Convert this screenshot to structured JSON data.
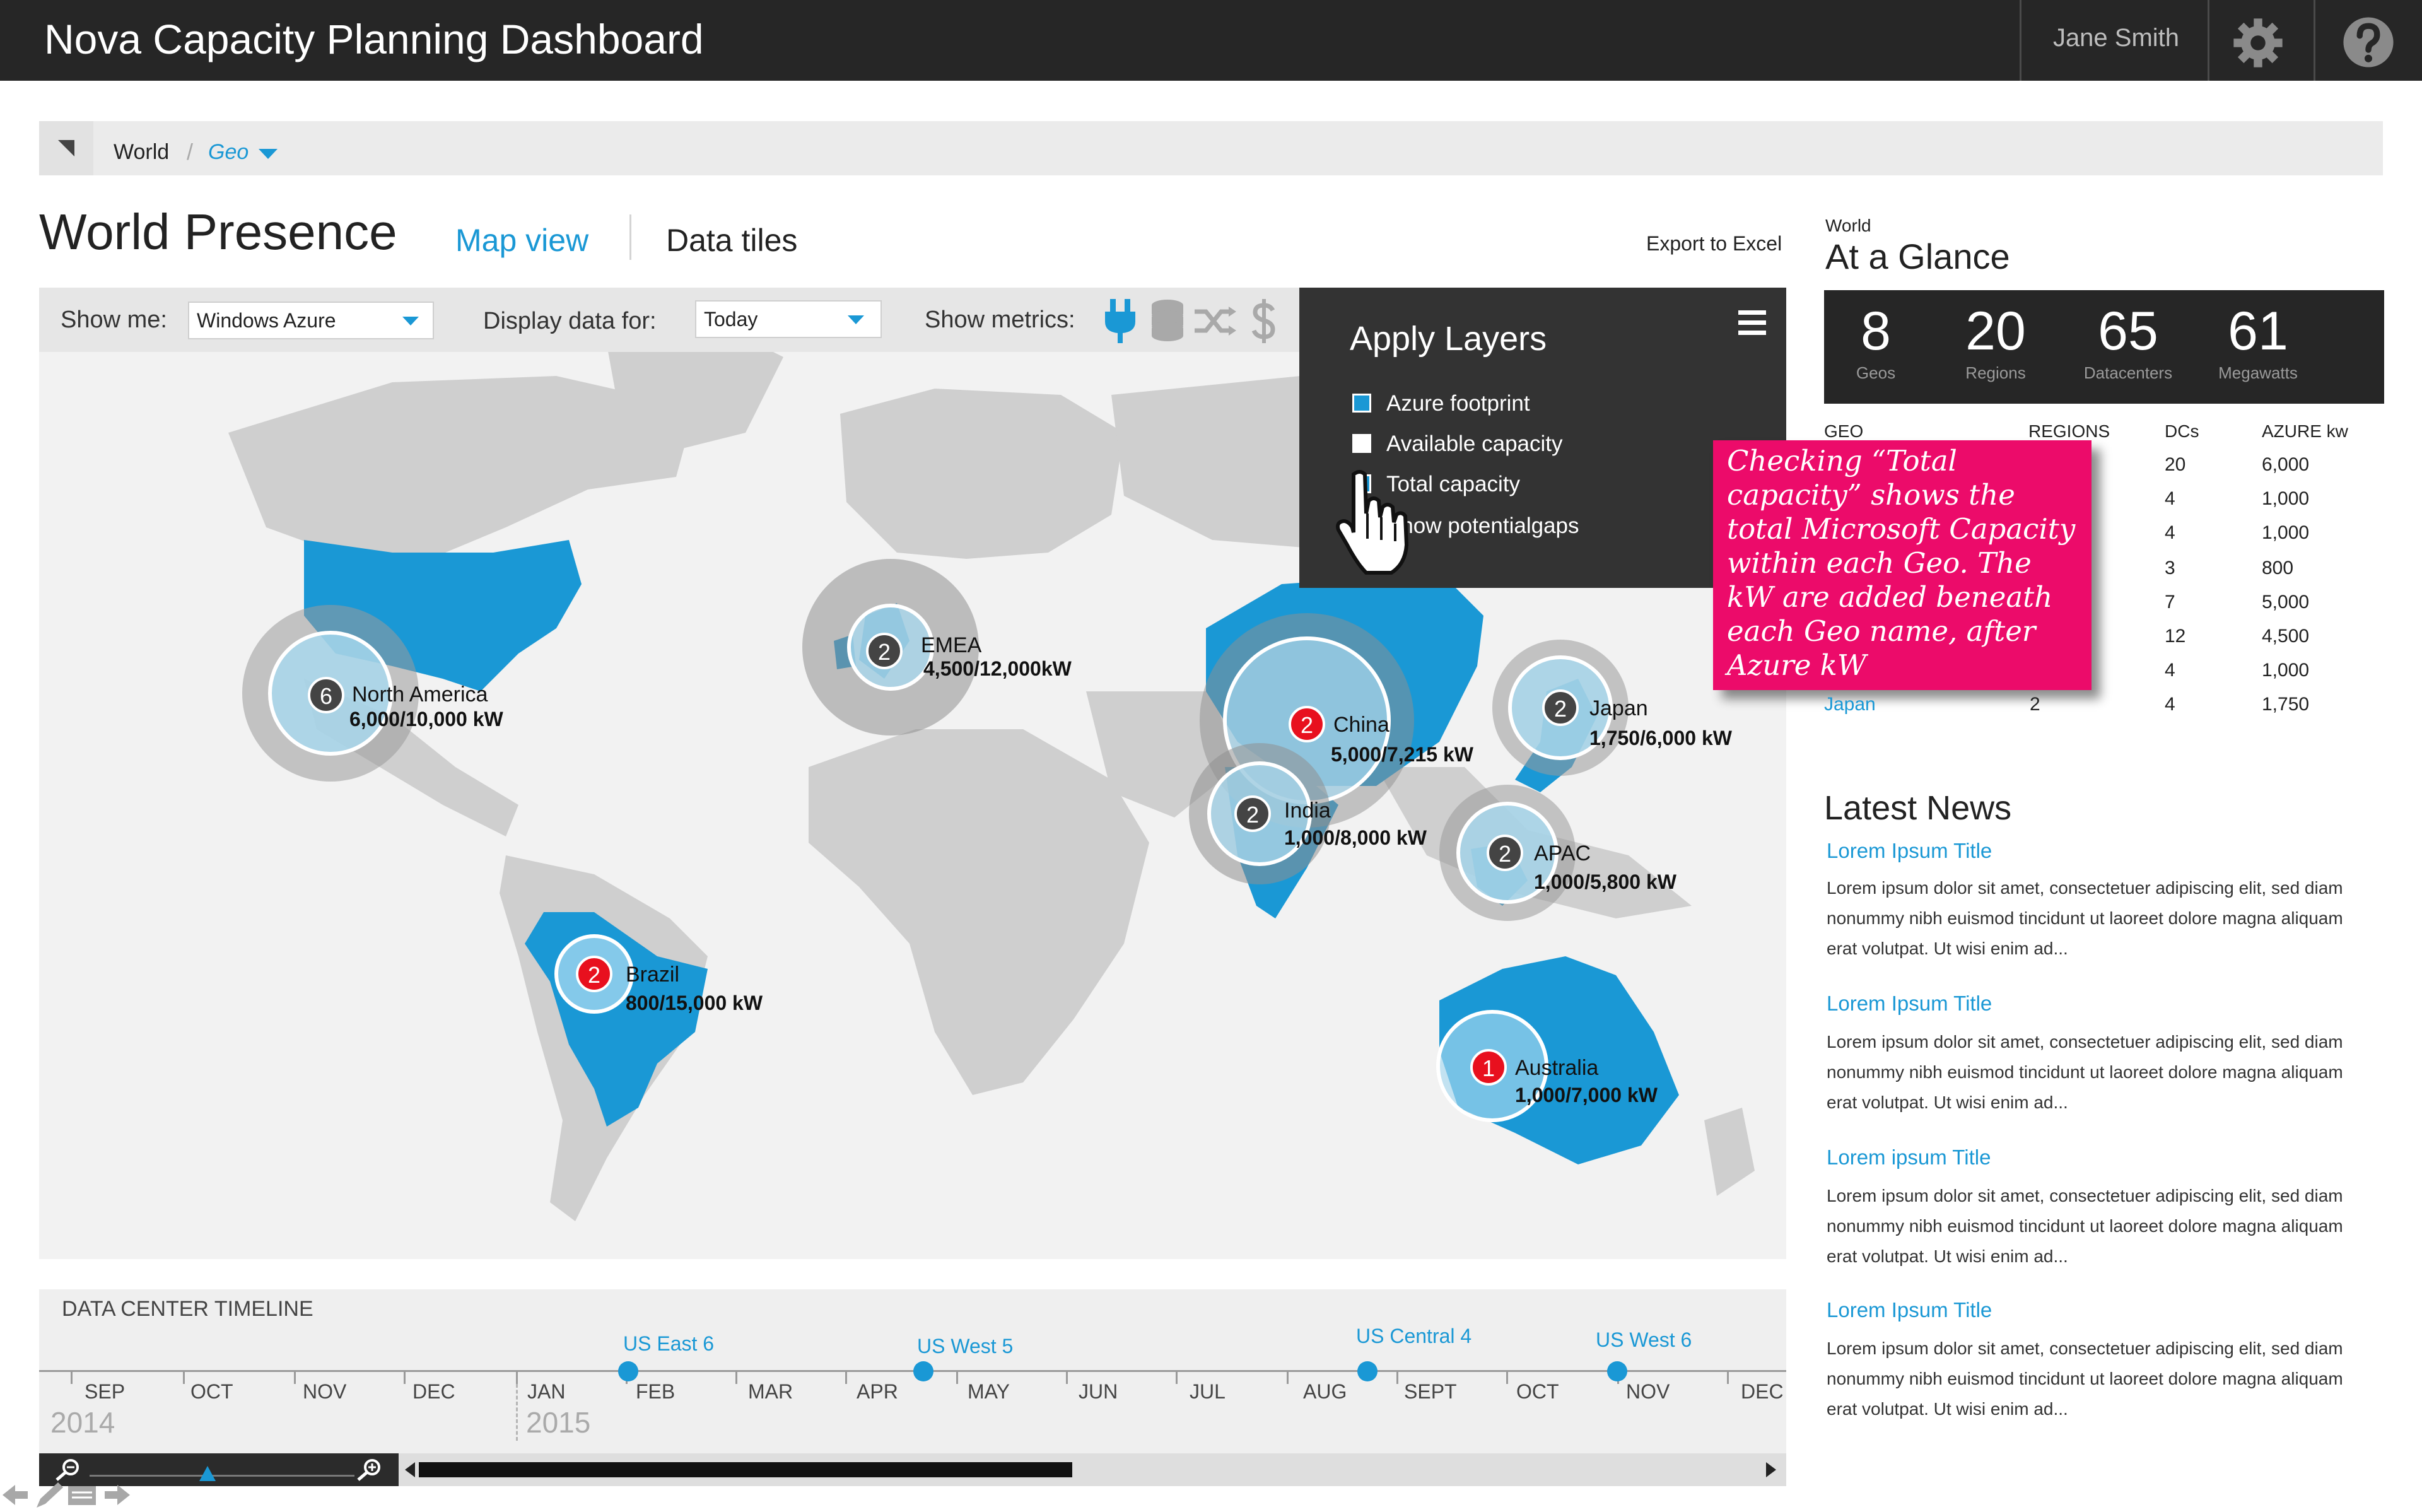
{
  "app": {
    "title": "Nova Capacity Planning Dashboard",
    "user": "Jane Smith"
  },
  "header_icons": [
    "gear-icon",
    "help-icon"
  ],
  "breadcrumb": {
    "items": [
      "World",
      "Geo"
    ],
    "separator": "/"
  },
  "page": {
    "title": "World Presence",
    "tabs": [
      {
        "label": "Map view",
        "active": true
      },
      {
        "label": "Data tiles",
        "active": false
      }
    ],
    "export_label": "Export to Excel"
  },
  "filters": {
    "show_me_label": "Show me:",
    "show_me_value": "Windows Azure",
    "display_label": "Display data for:",
    "display_value": "Today",
    "metrics_label": "Show metrics:",
    "metric_icons": [
      "plug-icon",
      "database-icon",
      "shuffle-icon",
      "dollar-icon"
    ]
  },
  "layers": {
    "title": "Apply Layers",
    "items": [
      {
        "label": "Azure footprint",
        "checked": true
      },
      {
        "label": "Available capacity",
        "checked": false
      },
      {
        "label": "Total capacity",
        "checked": true
      },
      {
        "label": "Show potentialgaps",
        "checked": false
      }
    ]
  },
  "note": {
    "text": "Checking “Total capacity” shows the total Microsoft Capacity within each Geo. The kW are added beneath each Geo name, after Azure kW"
  },
  "map": {
    "geos": [
      {
        "name": "North America",
        "count": "6",
        "capacity": "6,000/10,000 kW",
        "alert": false
      },
      {
        "name": "EMEA",
        "count": "2",
        "capacity": "4,500/12,000kW",
        "alert": false
      },
      {
        "name": "China",
        "count": "2",
        "capacity": "5,000/7,215 kW",
        "alert": true
      },
      {
        "name": "Japan",
        "count": "2",
        "capacity": "1,750/6,000 kW",
        "alert": false
      },
      {
        "name": "India",
        "count": "2",
        "capacity": "1,000/8,000 kW",
        "alert": false
      },
      {
        "name": "APAC",
        "count": "2",
        "capacity": "1,000/5,800 kW",
        "alert": false
      },
      {
        "name": "Brazil",
        "count": "2",
        "capacity": "800/15,000 kW",
        "alert": true
      },
      {
        "name": "Australia",
        "count": "1",
        "capacity": "1,000/7,000 kW",
        "alert": true
      }
    ]
  },
  "glance": {
    "subtitle": "World",
    "title": "At a Glance",
    "stats": [
      {
        "value": "8",
        "label": "Geos"
      },
      {
        "value": "20",
        "label": "Regions"
      },
      {
        "value": "65",
        "label": "Datacenters"
      },
      {
        "value": "61",
        "label": "Megawatts"
      }
    ],
    "table": {
      "headers": [
        "GEO",
        "REGIONS",
        "DCs",
        "AZURE kw"
      ],
      "rows": [
        {
          "dcs": "20",
          "kw": "6,000"
        },
        {
          "dcs": "4",
          "kw": "1,000"
        },
        {
          "dcs": "4",
          "kw": "1,000"
        },
        {
          "dcs": "3",
          "kw": "800"
        },
        {
          "dcs": "7",
          "kw": "5,000"
        },
        {
          "dcs": "12",
          "kw": "4,500"
        },
        {
          "dcs": "4",
          "kw": "1,000"
        },
        {
          "geo": "Japan",
          "regions": "2",
          "dcs": "4",
          "kw": "1,750"
        }
      ]
    }
  },
  "news": {
    "title": "Latest News",
    "items": [
      {
        "title": "Lorem Ipsum Title",
        "body": "Lorem ipsum dolor sit amet, consectetuer adipiscing elit, sed diam nonummy nibh euismod tincidunt ut laoreet dolore magna aliquam erat volutpat. Ut wisi enim ad..."
      },
      {
        "title": "Lorem Ipsum Title",
        "body": "Lorem ipsum dolor sit amet, consectetuer adipiscing elit, sed diam nonummy nibh euismod tincidunt ut laoreet dolore magna aliquam erat volutpat. Ut wisi enim ad..."
      },
      {
        "title": "Lorem ipsum Title",
        "body": "Lorem ipsum dolor sit amet, consectetuer adipiscing elit, sed diam nonummy nibh euismod tincidunt ut laoreet dolore magna aliquam erat volutpat. Ut wisi enim ad..."
      },
      {
        "title": "Lorem Ipsum Title",
        "body": "Lorem ipsum dolor sit amet, consectetuer adipiscing elit, sed diam nonummy nibh euismod tincidunt ut laoreet dolore magna aliquam erat volutpat. Ut wisi enim ad..."
      }
    ]
  },
  "timeline": {
    "title": "DATA CENTER TIMELINE",
    "months": [
      "SEP",
      "OCT",
      "NOV",
      "DEC",
      "JAN",
      "FEB",
      "MAR",
      "APR",
      "MAY",
      "JUN",
      "JUL",
      "AUG",
      "SEPT",
      "OCT",
      "NOV",
      "DEC"
    ],
    "years": [
      "2014",
      "2015"
    ],
    "events": [
      {
        "label": "US East 6"
      },
      {
        "label": "US West 5"
      },
      {
        "label": "US Central 4"
      },
      {
        "label": "US West 6"
      }
    ]
  },
  "colors": {
    "accent": "#1a98d5",
    "alert": "#e8101e",
    "note": "#ec0b6a",
    "topbar": "#262626"
  }
}
